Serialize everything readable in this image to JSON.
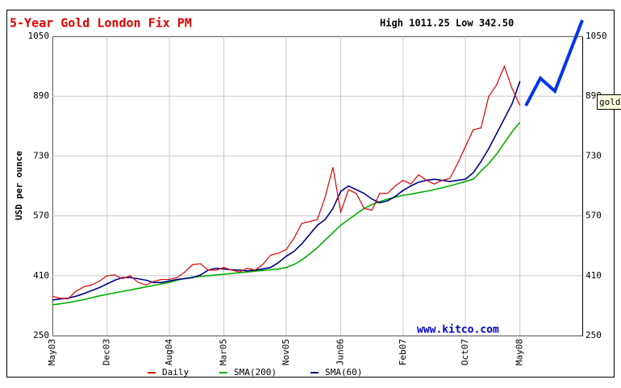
{
  "chart_data": {
    "type": "line",
    "title": "5-Year Gold London Fix PM",
    "subtitle": "High 1011.25 Low 342.50",
    "ylabel": "USD per ounce",
    "watermark": "www.kitco.com",
    "annotation": "gold",
    "x": [
      0,
      1,
      2,
      3,
      4,
      5,
      6,
      7,
      8,
      9,
      10,
      11,
      12,
      13,
      14,
      15,
      16,
      17,
      18,
      19,
      20,
      21,
      22,
      23,
      24,
      25,
      26,
      27,
      28,
      29,
      30,
      31,
      32,
      33,
      34,
      35,
      36,
      37,
      38,
      39,
      40,
      41,
      42,
      43,
      44,
      45,
      46,
      47,
      48,
      49,
      50,
      51,
      52,
      53,
      54,
      55,
      56,
      57,
      58,
      59,
      60
    ],
    "xlim": [
      0,
      68
    ],
    "xticks": [
      {
        "value": 0,
        "label": "May03"
      },
      {
        "value": 7,
        "label": "Dec03"
      },
      {
        "value": 15,
        "label": "Aug04"
      },
      {
        "value": 22,
        "label": "Mar05"
      },
      {
        "value": 30,
        "label": "Nov05"
      },
      {
        "value": 37,
        "label": "Jun06"
      },
      {
        "value": 45,
        "label": "Feb07"
      },
      {
        "value": 53,
        "label": "Oct07"
      },
      {
        "value": 60,
        "label": "May08"
      }
    ],
    "ylim": [
      250,
      1050
    ],
    "yticks": [
      250,
      410,
      570,
      730,
      890,
      1050
    ],
    "grid": true,
    "legend": "bottom",
    "series": [
      {
        "name": "Daily",
        "color": "#e00000",
        "values": [
          355,
          350,
          348,
          368,
          380,
          385,
          395,
          410,
          412,
          402,
          410,
          392,
          385,
          395,
          400,
          400,
          405,
          420,
          440,
          442,
          425,
          425,
          432,
          425,
          420,
          430,
          425,
          440,
          465,
          470,
          480,
          510,
          550,
          555,
          560,
          620,
          700,
          580,
          640,
          630,
          590,
          585,
          630,
          630,
          650,
          665,
          655,
          680,
          665,
          655,
          665,
          670,
          710,
          755,
          800,
          805,
          890,
          920,
          970,
          910,
          865
        ]
      },
      {
        "name": "SMA(200)",
        "color": "#00b000",
        "values": [
          332,
          335,
          338,
          342,
          346,
          351,
          356,
          360,
          364,
          368,
          372,
          376,
          380,
          384,
          388,
          392,
          398,
          403,
          406,
          408,
          410,
          412,
          414,
          416,
          418,
          420,
          422,
          424,
          426,
          428,
          432,
          440,
          452,
          468,
          485,
          505,
          525,
          545,
          560,
          575,
          590,
          600,
          608,
          615,
          620,
          625,
          628,
          632,
          636,
          640,
          645,
          650,
          656,
          662,
          668,
          690,
          710,
          735,
          765,
          795,
          820
        ]
      },
      {
        "name": "SMA(60)",
        "color": "#00008b",
        "values": [
          345,
          348,
          350,
          355,
          362,
          370,
          378,
          388,
          398,
          405,
          405,
          402,
          398,
          392,
          392,
          396,
          400,
          402,
          405,
          412,
          425,
          430,
          428,
          426,
          425,
          423,
          425,
          428,
          432,
          445,
          462,
          475,
          495,
          520,
          545,
          560,
          590,
          635,
          650,
          640,
          630,
          615,
          605,
          610,
          622,
          638,
          650,
          660,
          665,
          668,
          665,
          662,
          665,
          668,
          685,
          715,
          750,
          790,
          830,
          870,
          930
        ]
      }
    ]
  }
}
